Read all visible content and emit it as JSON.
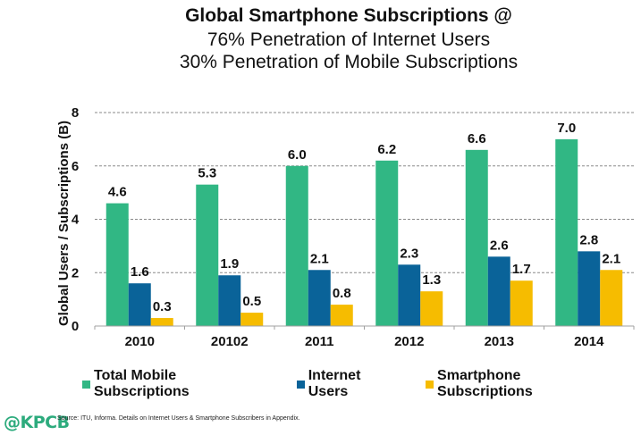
{
  "chart_data": {
    "type": "bar",
    "title": "Global Smartphone Subscriptions @",
    "subtitle_lines": [
      "76% Penetration of Internet Users",
      "30% Penetration of Mobile Subscriptions"
    ],
    "xlabel": "",
    "ylabel": "Global Users / Subscriptions (B)",
    "ylim": [
      0,
      8
    ],
    "yticks": [
      0,
      2,
      4,
      6,
      8
    ],
    "grid": true,
    "legend_position": "bottom",
    "categories": [
      "2010",
      "20102",
      "2011",
      "2012",
      "2013",
      "2014"
    ],
    "series": [
      {
        "name": "Total Mobile Subscriptions",
        "color": "#31b784",
        "values": [
          4.6,
          5.3,
          6.0,
          6.2,
          6.6,
          7.0
        ],
        "labels": [
          "4.6",
          "5.3",
          "6.0",
          "6.2",
          "6.6",
          "7.0"
        ]
      },
      {
        "name": "Internet Users",
        "color": "#0a6399",
        "values": [
          1.6,
          1.9,
          2.1,
          2.3,
          2.6,
          2.8
        ],
        "labels": [
          "1.6",
          "1.9",
          "2.1",
          "2.3",
          "2.6",
          "2.8"
        ]
      },
      {
        "name": "Smartphone Subscriptions",
        "color": "#f6bc00",
        "values": [
          0.3,
          0.5,
          0.8,
          1.3,
          1.7,
          2.1
        ],
        "labels": [
          "0.3",
          "0.5",
          "0.8",
          "1.3",
          "1.7",
          "2.1"
        ]
      }
    ]
  },
  "footer": {
    "logo": "@KPCB",
    "source": "Source: ITU, Informa. Details on Internet Users & Smartphone Subscribers in Appendix."
  }
}
